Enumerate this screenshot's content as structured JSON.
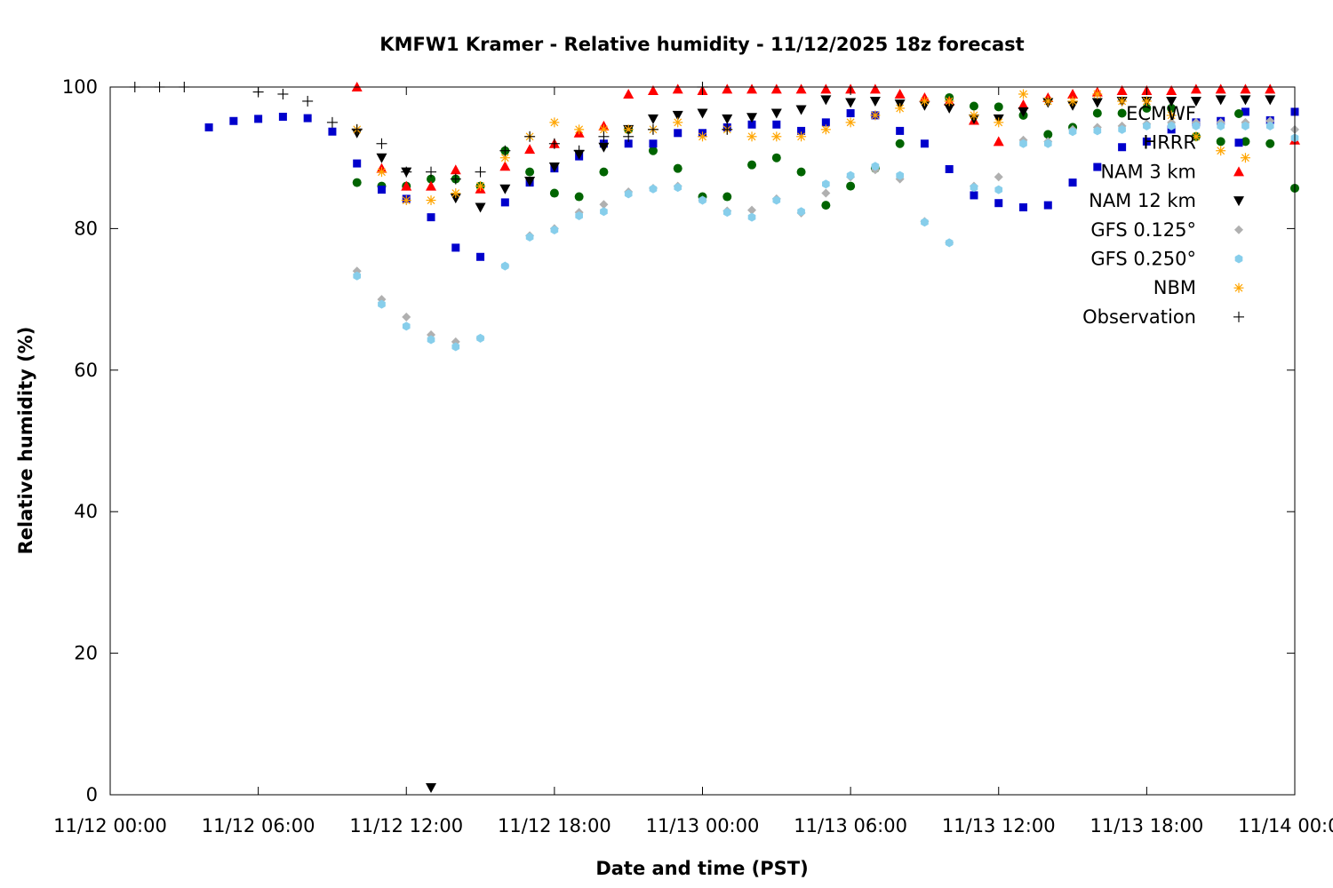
{
  "chart_data": {
    "type": "scatter",
    "title": "KMFW1 Kramer - Relative humidity - 11/12/2025 18z forecast",
    "xlabel": "Date and time (PST)",
    "ylabel": "Relative humidity (%)",
    "x_unit": "hours since 11/12 00:00",
    "xlim": [
      0,
      48
    ],
    "ylim": [
      0,
      100
    ],
    "x_ticks": [
      {
        "value": 0,
        "label": "11/12 00:00"
      },
      {
        "value": 6,
        "label": "11/12 06:00"
      },
      {
        "value": 12,
        "label": "11/12 12:00"
      },
      {
        "value": 18,
        "label": "11/12 18:00"
      },
      {
        "value": 24,
        "label": "11/13 00:00"
      },
      {
        "value": 30,
        "label": "11/13 06:00"
      },
      {
        "value": 36,
        "label": "11/13 12:00"
      },
      {
        "value": 42,
        "label": "11/13 18:00"
      },
      {
        "value": 48,
        "label": "11/14 00:00"
      }
    ],
    "y_ticks": [
      {
        "value": 0,
        "label": "0"
      },
      {
        "value": 20,
        "label": "20"
      },
      {
        "value": 40,
        "label": "40"
      },
      {
        "value": 60,
        "label": "60"
      },
      {
        "value": 80,
        "label": "80"
      },
      {
        "value": 100,
        "label": "100"
      }
    ],
    "grid": false,
    "legend_position": "top-right",
    "series": [
      {
        "name": "ECMWF",
        "marker": "circle",
        "color": "#006400",
        "points": [
          [
            10,
            86.5
          ],
          [
            11,
            86
          ],
          [
            12,
            86
          ],
          [
            13,
            87
          ],
          [
            14,
            87
          ],
          [
            15,
            86
          ],
          [
            16,
            91
          ],
          [
            17,
            88
          ],
          [
            18,
            85
          ],
          [
            19,
            84.5
          ],
          [
            20,
            88
          ],
          [
            21,
            94
          ],
          [
            22,
            91
          ],
          [
            23,
            88.5
          ],
          [
            24,
            84.5
          ],
          [
            25,
            84.5
          ],
          [
            26,
            89
          ],
          [
            27,
            90
          ],
          [
            28,
            88
          ],
          [
            29,
            83.3
          ],
          [
            30,
            86
          ],
          [
            31,
            88.5
          ],
          [
            32,
            92
          ],
          [
            34,
            98.5
          ],
          [
            35,
            97.3
          ],
          [
            36,
            97.2
          ],
          [
            37,
            96
          ],
          [
            38,
            93.3
          ],
          [
            39,
            94.3
          ],
          [
            40,
            96.3
          ],
          [
            41,
            96.3
          ],
          [
            42,
            97
          ],
          [
            43,
            97
          ],
          [
            44,
            93
          ],
          [
            45,
            92.3
          ],
          [
            46,
            92.3
          ],
          [
            47,
            92
          ],
          [
            48,
            85.7
          ]
        ]
      },
      {
        "name": "HRRR",
        "marker": "square",
        "color": "#0000cc",
        "points": [
          [
            4,
            94.3
          ],
          [
            5,
            95.2
          ],
          [
            6,
            95.5
          ],
          [
            7,
            95.8
          ],
          [
            8,
            95.6
          ],
          [
            9,
            93.7
          ],
          [
            10,
            89.2
          ],
          [
            11,
            85.5
          ],
          [
            12,
            84.2
          ],
          [
            13,
            81.6
          ],
          [
            14,
            77.3
          ],
          [
            15,
            76
          ],
          [
            16,
            83.7
          ],
          [
            17,
            86.5
          ],
          [
            18,
            88.5
          ],
          [
            19,
            90.2
          ],
          [
            20,
            92
          ],
          [
            21,
            92
          ],
          [
            22,
            92
          ],
          [
            23,
            93.5
          ],
          [
            24,
            93.5
          ],
          [
            25,
            94.3
          ],
          [
            26,
            94.7
          ],
          [
            27,
            94.7
          ],
          [
            28,
            93.8
          ],
          [
            29,
            95
          ],
          [
            30,
            96.3
          ],
          [
            31,
            96
          ],
          [
            32,
            93.8
          ],
          [
            33,
            92
          ],
          [
            34,
            88.4
          ],
          [
            35,
            84.7
          ],
          [
            36,
            83.6
          ],
          [
            37,
            83
          ],
          [
            38,
            83.3
          ],
          [
            39,
            86.5
          ],
          [
            40,
            88.7
          ],
          [
            41,
            91.5
          ],
          [
            42,
            92.3
          ],
          [
            43,
            94
          ],
          [
            44,
            95
          ],
          [
            45,
            95.2
          ],
          [
            46,
            96.5
          ],
          [
            47,
            95.3
          ],
          [
            48,
            96.5
          ]
        ]
      },
      {
        "name": "NAM 3 km",
        "marker": "triangle-up",
        "color": "#ff0000",
        "points": [
          [
            10,
            100
          ],
          [
            11,
            88.5
          ],
          [
            12,
            86
          ],
          [
            13,
            86
          ],
          [
            14,
            88.3
          ],
          [
            15,
            85.6
          ],
          [
            16,
            88.8
          ],
          [
            17,
            91.2
          ],
          [
            18,
            92
          ],
          [
            19,
            93.5
          ],
          [
            20,
            94.5
          ],
          [
            21,
            99
          ],
          [
            22,
            99.5
          ],
          [
            23,
            99.7
          ],
          [
            24,
            99.5
          ],
          [
            25,
            99.7
          ],
          [
            26,
            99.7
          ],
          [
            27,
            99.7
          ],
          [
            28,
            99.7
          ],
          [
            29,
            99.7
          ],
          [
            30,
            99.7
          ],
          [
            31,
            99.7
          ],
          [
            32,
            99
          ],
          [
            33,
            98.5
          ],
          [
            34,
            98
          ],
          [
            35,
            95.3
          ],
          [
            36,
            92.3
          ],
          [
            37,
            97.5
          ],
          [
            38,
            98.5
          ],
          [
            39,
            99
          ],
          [
            40,
            99.3
          ],
          [
            41,
            99.5
          ],
          [
            42,
            99.5
          ],
          [
            43,
            99.5
          ],
          [
            44,
            99.7
          ],
          [
            45,
            99.7
          ],
          [
            46,
            99.7
          ],
          [
            47,
            99.7
          ],
          [
            48,
            92.5
          ]
        ]
      },
      {
        "name": "NAM 12 km",
        "marker": "triangle-down",
        "color": "#000000",
        "points": [
          [
            10,
            93.5
          ],
          [
            11,
            90
          ],
          [
            12,
            88
          ],
          [
            13,
            1
          ],
          [
            14,
            84.3
          ],
          [
            15,
            83
          ],
          [
            16,
            85.6
          ],
          [
            17,
            86.7
          ],
          [
            18,
            88.7
          ],
          [
            19,
            90.5
          ],
          [
            20,
            91.5
          ],
          [
            21,
            94
          ],
          [
            22,
            95.5
          ],
          [
            23,
            96
          ],
          [
            24,
            96.3
          ],
          [
            25,
            95.5
          ],
          [
            26,
            95.7
          ],
          [
            27,
            96.3
          ],
          [
            28,
            96.8
          ],
          [
            29,
            98.2
          ],
          [
            30,
            97.8
          ],
          [
            31,
            98
          ],
          [
            32,
            97.6
          ],
          [
            33,
            97.4
          ],
          [
            34,
            97
          ],
          [
            35,
            95.5
          ],
          [
            36,
            95.5
          ],
          [
            37,
            96.5
          ],
          [
            38,
            97.8
          ],
          [
            39,
            97.4
          ],
          [
            40,
            97.8
          ],
          [
            41,
            98
          ],
          [
            42,
            98
          ],
          [
            43,
            98
          ],
          [
            44,
            98
          ],
          [
            45,
            98.2
          ],
          [
            46,
            98.2
          ],
          [
            47,
            98.2
          ]
        ]
      },
      {
        "name": "GFS 0.125°",
        "marker": "diamond",
        "color": "#b0b0b0",
        "points": [
          [
            10,
            74
          ],
          [
            11,
            70
          ],
          [
            12,
            67.5
          ],
          [
            13,
            65
          ],
          [
            14,
            64
          ],
          [
            15,
            64.5
          ],
          [
            16,
            74.7
          ],
          [
            17,
            79
          ],
          [
            18,
            80
          ],
          [
            19,
            82.3
          ],
          [
            20,
            83.4
          ],
          [
            21,
            85.2
          ],
          [
            22,
            85.7
          ],
          [
            23,
            86
          ],
          [
            24,
            84
          ],
          [
            25,
            82.5
          ],
          [
            26,
            82.6
          ],
          [
            27,
            84.2
          ],
          [
            28,
            82.2
          ],
          [
            29,
            85
          ],
          [
            30,
            87.3
          ],
          [
            31,
            88.3
          ],
          [
            32,
            87
          ],
          [
            33,
            81
          ],
          [
            34,
            78
          ],
          [
            35,
            86
          ],
          [
            36,
            87.3
          ],
          [
            37,
            92.5
          ],
          [
            38,
            92.3
          ],
          [
            39,
            94
          ],
          [
            40,
            94.3
          ],
          [
            41,
            94.5
          ],
          [
            42,
            94.8
          ],
          [
            43,
            95
          ],
          [
            44,
            95
          ],
          [
            45,
            95
          ],
          [
            46,
            95
          ],
          [
            47,
            95.2
          ],
          [
            48,
            94
          ]
        ]
      },
      {
        "name": "GFS 0.250°",
        "marker": "hexagon",
        "color": "#87ceeb",
        "points": [
          [
            10,
            73.3
          ],
          [
            11,
            69.3
          ],
          [
            12,
            66.2
          ],
          [
            13,
            64.3
          ],
          [
            14,
            63.3
          ],
          [
            15,
            64.5
          ],
          [
            16,
            74.7
          ],
          [
            17,
            78.8
          ],
          [
            18,
            79.8
          ],
          [
            19,
            81.8
          ],
          [
            20,
            82.4
          ],
          [
            21,
            84.9
          ],
          [
            22,
            85.6
          ],
          [
            23,
            85.8
          ],
          [
            24,
            84
          ],
          [
            25,
            82.3
          ],
          [
            26,
            81.6
          ],
          [
            27,
            84
          ],
          [
            28,
            82.4
          ],
          [
            29,
            86.3
          ],
          [
            30,
            87.5
          ],
          [
            31,
            88.8
          ],
          [
            32,
            87.5
          ],
          [
            33,
            80.9
          ],
          [
            34,
            78
          ],
          [
            35,
            85.8
          ],
          [
            36,
            85.5
          ],
          [
            37,
            92
          ],
          [
            38,
            92
          ],
          [
            39,
            93.7
          ],
          [
            40,
            93.8
          ],
          [
            41,
            94
          ],
          [
            42,
            94.5
          ],
          [
            43,
            94.5
          ],
          [
            44,
            94.5
          ],
          [
            45,
            94.5
          ],
          [
            46,
            94.5
          ],
          [
            47,
            94.5
          ],
          [
            48,
            92.8
          ]
        ]
      },
      {
        "name": "NBM",
        "marker": "asterisk",
        "color": "#ffa500",
        "points": [
          [
            10,
            94
          ],
          [
            11,
            88
          ],
          [
            12,
            84
          ],
          [
            13,
            84
          ],
          [
            14,
            85
          ],
          [
            15,
            86
          ],
          [
            16,
            90
          ],
          [
            17,
            93
          ],
          [
            18,
            95
          ],
          [
            19,
            94
          ],
          [
            20,
            94
          ],
          [
            21,
            94
          ],
          [
            22,
            94
          ],
          [
            23,
            95
          ],
          [
            24,
            93
          ],
          [
            25,
            94
          ],
          [
            26,
            93
          ],
          [
            27,
            93
          ],
          [
            28,
            93
          ],
          [
            29,
            94
          ],
          [
            30,
            95
          ],
          [
            31,
            96
          ],
          [
            32,
            97
          ],
          [
            33,
            98
          ],
          [
            34,
            98
          ],
          [
            35,
            96
          ],
          [
            36,
            95
          ],
          [
            37,
            99
          ],
          [
            38,
            98
          ],
          [
            39,
            98
          ],
          [
            40,
            99
          ],
          [
            41,
            98
          ],
          [
            42,
            98
          ],
          [
            43,
            96
          ],
          [
            44,
            93
          ],
          [
            45,
            91
          ],
          [
            46,
            90
          ]
        ]
      },
      {
        "name": "Observation",
        "marker": "plus",
        "color": "#000000",
        "points": [
          [
            1,
            100
          ],
          [
            2,
            100
          ],
          [
            3,
            100
          ],
          [
            6,
            99.3
          ],
          [
            7,
            99
          ],
          [
            8,
            98
          ],
          [
            9,
            95
          ],
          [
            10,
            94
          ],
          [
            11,
            92
          ],
          [
            12,
            88
          ],
          [
            13,
            88
          ],
          [
            14,
            87
          ],
          [
            15,
            88
          ],
          [
            16,
            91
          ],
          [
            17,
            93
          ],
          [
            18,
            92
          ],
          [
            19,
            91
          ],
          [
            20,
            93
          ],
          [
            21,
            93
          ],
          [
            22,
            94
          ],
          [
            24,
            100
          ],
          [
            25,
            94
          ]
        ]
      }
    ]
  }
}
